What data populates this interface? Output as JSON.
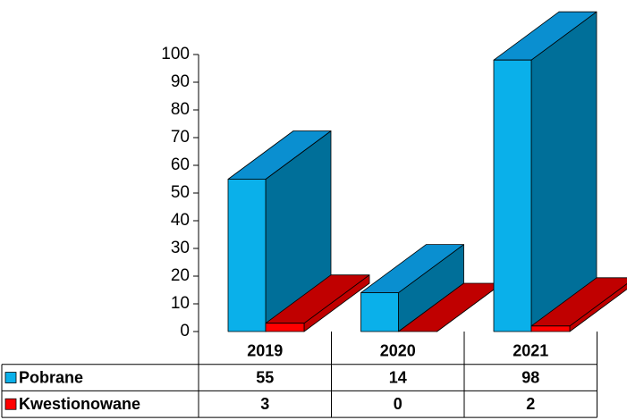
{
  "chart_data": {
    "type": "bar3d",
    "categories": [
      "2019",
      "2020",
      "2021"
    ],
    "series": [
      {
        "name": "Pobrane",
        "color": "#0ab0ea",
        "side_color": "#006f99",
        "top_color": "#0a8fd0",
        "values": [
          55,
          14,
          98
        ]
      },
      {
        "name": "Kwestionowane",
        "color": "#ff0000",
        "side_color": "#c00000",
        "top_color": "#c00000",
        "values": [
          3,
          0,
          2
        ]
      }
    ],
    "ylim": [
      0,
      100
    ],
    "yticks": [
      0,
      10,
      20,
      30,
      40,
      50,
      60,
      70,
      80,
      90,
      100
    ],
    "grid": false,
    "data_table": true
  }
}
